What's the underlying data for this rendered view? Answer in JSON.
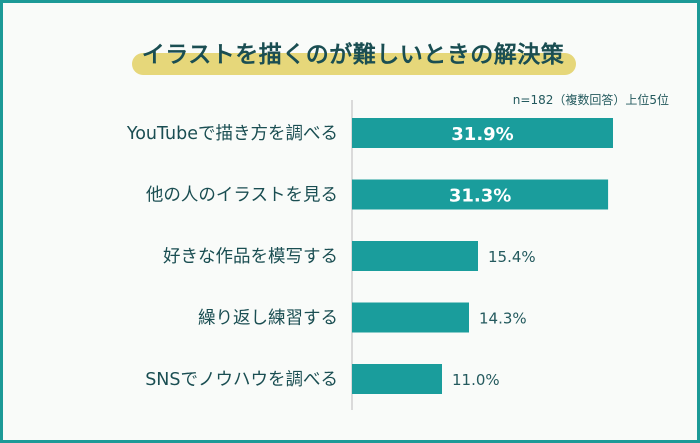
{
  "title": "イラストを描くのが難しいときの解決策",
  "note": "n=182（複数回答）上位5位",
  "colors": {
    "bar": "#1a9d9c",
    "frame": "#1c9a97",
    "highlight": "#e6d77a",
    "text": "#1a4e52"
  },
  "chart_data": {
    "type": "bar",
    "orientation": "horizontal",
    "categories": [
      "YouTubeで描き方を調べる",
      "他の人のイラストを見る",
      "好きな作品を模写する",
      "繰り返し練習する",
      "SNSでノウハウを調べる"
    ],
    "values": [
      31.9,
      31.3,
      15.4,
      14.3,
      11.0
    ],
    "value_labels": [
      "31.9%",
      "31.3%",
      "15.4%",
      "14.3%",
      "11.0%"
    ],
    "xlim": [
      0,
      40
    ],
    "grid": false,
    "legend": "none"
  }
}
